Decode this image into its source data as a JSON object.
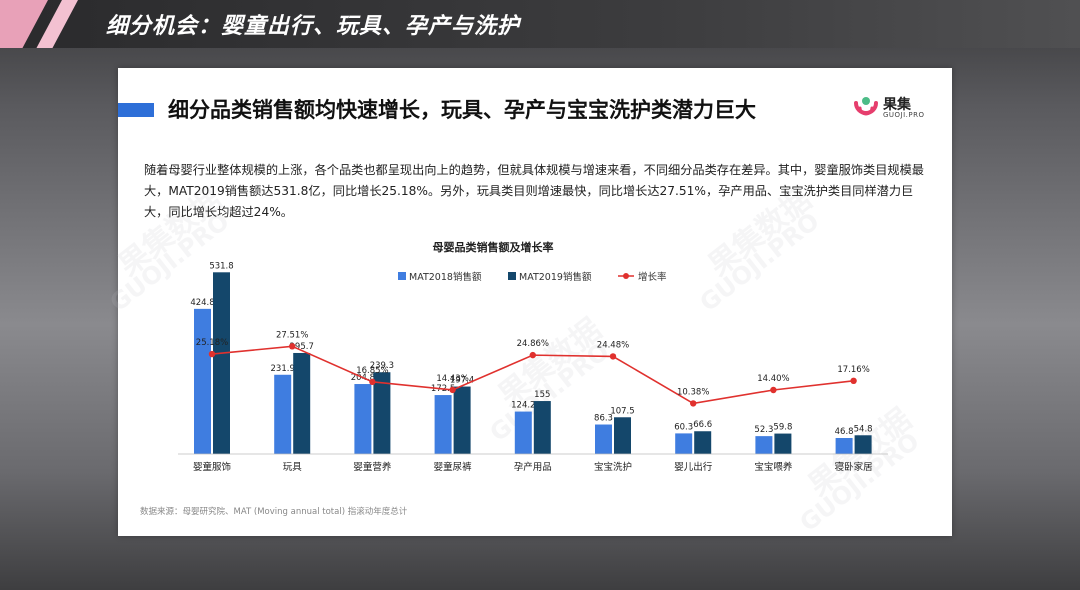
{
  "header": {
    "title": "细分机会：婴童出行、玩具、孕产与洗护"
  },
  "slide": {
    "title": "细分品类销售额均快速增长，玩具、孕产与宝宝洗护类潜力巨大",
    "logo_cn": "果集",
    "logo_en": "GUOJI.PRO",
    "paragraph": "随着母婴行业整体规模的上涨，各个品类也都呈现出向上的趋势，但就具体规模与增速来看，不同细分品类存在差异。其中，婴童服饰类目规模最大，MAT2019销售额达531.8亿，同比增长25.18%。另外，玩具类目则增速最快，同比增长达27.51%，孕产用品、宝宝洗护类目同样潜力巨大，同比增长均超过24%。",
    "source": "数据来源：母婴研究院、MAT (Moving annual total) 指滚动年度总计",
    "watermark_cn": "果集数据",
    "watermark_en": "GUOJI.PRO"
  },
  "colors": {
    "mat2018": "#3f7de0",
    "mat2019": "#14476b",
    "growth": "#e0312e",
    "accent": "#2e6fd8"
  },
  "chart_data": {
    "type": "bar",
    "title": "母婴品类销售额及增长率",
    "categories": [
      "婴童服饰",
      "玩具",
      "婴童营养",
      "婴童尿裤",
      "孕产用品",
      "宝宝洗护",
      "婴儿出行",
      "宝宝喂养",
      "寝卧家居"
    ],
    "series": [
      {
        "name": "MAT2018销售额",
        "type": "bar",
        "values": [
          424.8,
          231.9,
          204.8,
          172.5,
          124.2,
          86.3,
          60.3,
          52.3,
          46.8
        ],
        "labels": [
          "424.8",
          "231.9",
          "204.8",
          "172.5",
          "124.2",
          "86.3",
          "60.3",
          "52.3",
          "46.8"
        ]
      },
      {
        "name": "MAT2019销售额",
        "type": "bar",
        "values": [
          531.8,
          295.7,
          239.3,
          197.4,
          155,
          107.5,
          66.6,
          59.8,
          54.8
        ],
        "labels": [
          "531.8",
          "295.7",
          "239.3",
          "197.4",
          "155",
          "107.5",
          "66.6",
          "59.8",
          "54.8"
        ]
      },
      {
        "name": "增长率",
        "type": "line",
        "values": [
          25.18,
          27.51,
          16.85,
          14.43,
          24.86,
          24.48,
          10.38,
          14.4,
          17.16
        ],
        "labels": [
          "25.18%",
          "27.51%",
          "16.85%",
          "14.43%",
          "24.86%",
          "24.48%",
          "10.38%",
          "14.40%",
          "17.16%"
        ]
      }
    ],
    "legend": "top-center",
    "grid": false
  }
}
